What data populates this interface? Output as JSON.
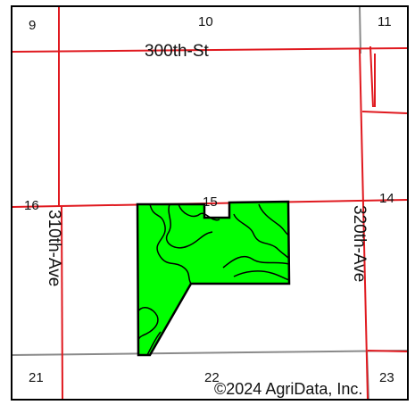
{
  "map": {
    "roads": {
      "horizontal_top": "300th-St",
      "vertical_left": "310th-Ave",
      "vertical_right": "320th-Ave"
    },
    "sections": [
      "9",
      "10",
      "11",
      "16",
      "15",
      "14",
      "21",
      "22",
      "23"
    ],
    "copyright": "©2024 AgriData, Inc.",
    "colors": {
      "field_fill": "#00ff00",
      "section_line": "#e0191f",
      "road_line": "#888888",
      "border": "#000000"
    }
  }
}
